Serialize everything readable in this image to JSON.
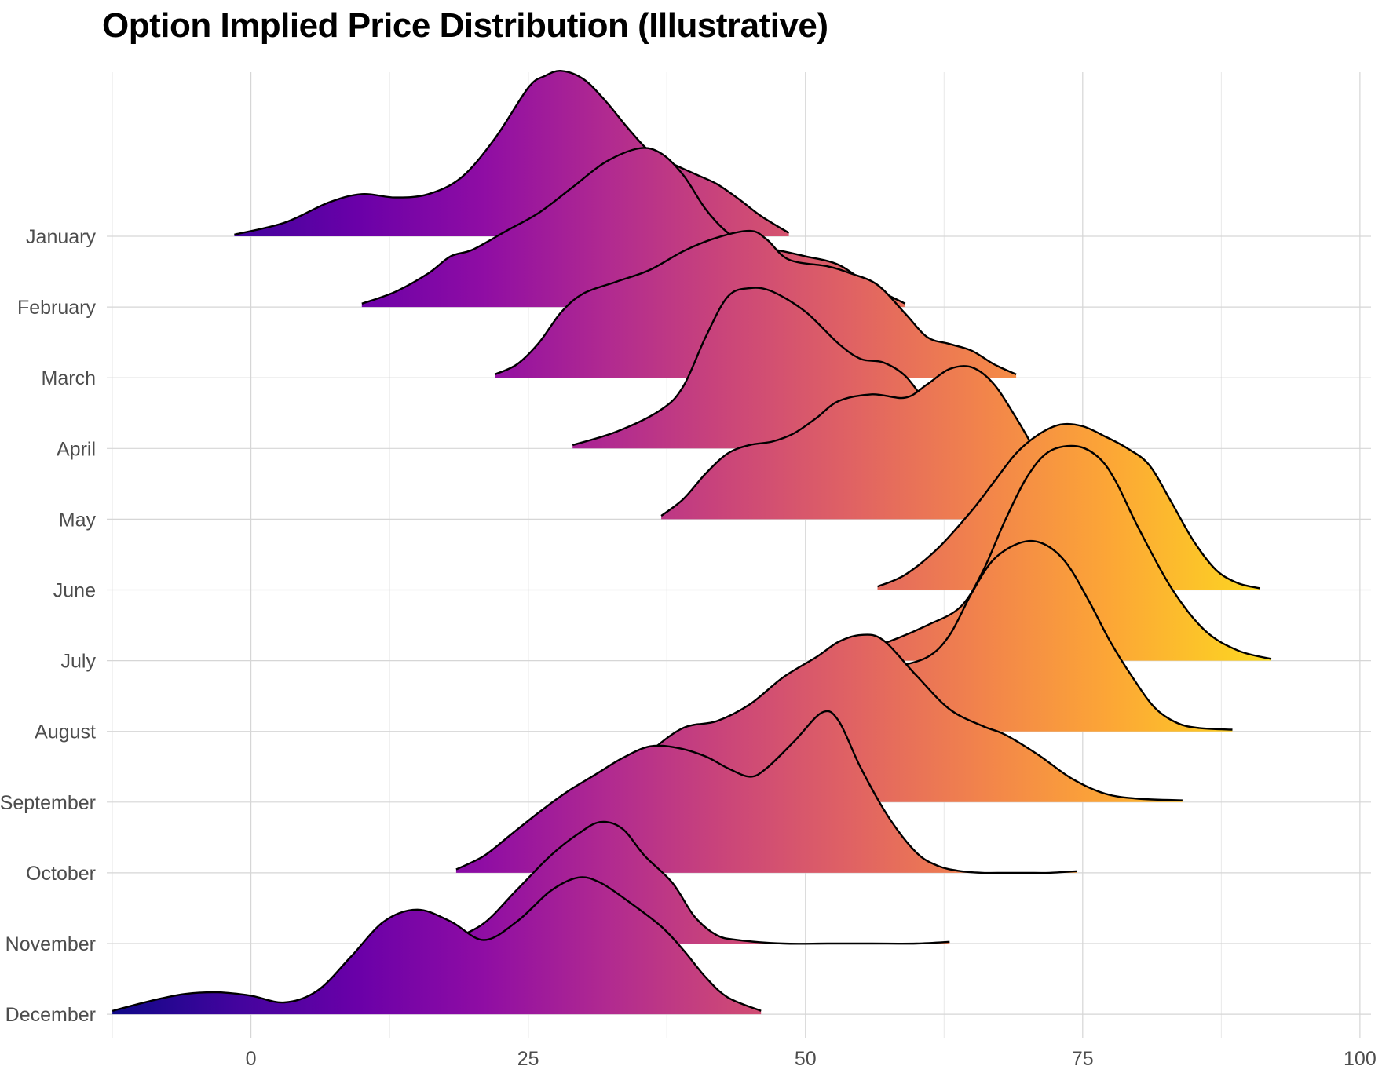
{
  "chart_data": {
    "type": "area",
    "subtype": "ridgeline",
    "title": "Option Implied Price Distribution (Illustrative)",
    "xlabel": "",
    "ylabel": "",
    "xlim": [
      -13,
      101
    ],
    "x_ticks": [
      0,
      25,
      50,
      75,
      100
    ],
    "x_tick_labels": [
      "0",
      "25",
      "50",
      "75",
      "100"
    ],
    "grid": true,
    "legend": "none",
    "color_map": "plasma",
    "color_domain": [
      -13,
      92
    ],
    "categories": [
      "January",
      "February",
      "March",
      "April",
      "May",
      "June",
      "July",
      "August",
      "September",
      "October",
      "November",
      "December"
    ],
    "series": [
      {
        "name": "January",
        "points": [
          [
            -1.5,
            0.01
          ],
          [
            3,
            0.08
          ],
          [
            7,
            0.2
          ],
          [
            10,
            0.25
          ],
          [
            13,
            0.23
          ],
          [
            16,
            0.25
          ],
          [
            19,
            0.35
          ],
          [
            22,
            0.58
          ],
          [
            25,
            0.88
          ],
          [
            26.5,
            0.95
          ],
          [
            28,
            0.98
          ],
          [
            30,
            0.93
          ],
          [
            32,
            0.8
          ],
          [
            34,
            0.64
          ],
          [
            36,
            0.5
          ],
          [
            38,
            0.43
          ],
          [
            40,
            0.37
          ],
          [
            42,
            0.31
          ],
          [
            44,
            0.22
          ],
          [
            46,
            0.12
          ],
          [
            48.5,
            0.02
          ]
        ]
      },
      {
        "name": "February",
        "points": [
          [
            10,
            0.02
          ],
          [
            13,
            0.09
          ],
          [
            16,
            0.2
          ],
          [
            18,
            0.3
          ],
          [
            20,
            0.34
          ],
          [
            23,
            0.45
          ],
          [
            26,
            0.56
          ],
          [
            29,
            0.71
          ],
          [
            32,
            0.86
          ],
          [
            35,
            0.94
          ],
          [
            37,
            0.91
          ],
          [
            39,
            0.78
          ],
          [
            41,
            0.58
          ],
          [
            43,
            0.44
          ],
          [
            45,
            0.37
          ],
          [
            48,
            0.33
          ],
          [
            50,
            0.3
          ],
          [
            53,
            0.25
          ],
          [
            56,
            0.12
          ],
          [
            59,
            0.02
          ]
        ]
      },
      {
        "name": "March",
        "points": [
          [
            22,
            0.02
          ],
          [
            24,
            0.08
          ],
          [
            26,
            0.21
          ],
          [
            28,
            0.39
          ],
          [
            30,
            0.5
          ],
          [
            33,
            0.57
          ],
          [
            36,
            0.64
          ],
          [
            39,
            0.75
          ],
          [
            42,
            0.83
          ],
          [
            45,
            0.87
          ],
          [
            46.5,
            0.82
          ],
          [
            48.5,
            0.7
          ],
          [
            52,
            0.66
          ],
          [
            54,
            0.62
          ],
          [
            56.5,
            0.55
          ],
          [
            59,
            0.38
          ],
          [
            61,
            0.24
          ],
          [
            63,
            0.2
          ],
          [
            65,
            0.16
          ],
          [
            67,
            0.08
          ],
          [
            69,
            0.02
          ]
        ]
      },
      {
        "name": "April",
        "points": [
          [
            29,
            0.02
          ],
          [
            33,
            0.1
          ],
          [
            37,
            0.23
          ],
          [
            39,
            0.37
          ],
          [
            41,
            0.66
          ],
          [
            43,
            0.9
          ],
          [
            45,
            0.95
          ],
          [
            47,
            0.93
          ],
          [
            50,
            0.81
          ],
          [
            53,
            0.62
          ],
          [
            55,
            0.53
          ],
          [
            57,
            0.51
          ],
          [
            59,
            0.43
          ],
          [
            61,
            0.26
          ],
          [
            63,
            0.1
          ],
          [
            65,
            0.05
          ],
          [
            67,
            0.02
          ]
        ]
      },
      {
        "name": "May",
        "points": [
          [
            37,
            0.02
          ],
          [
            39,
            0.12
          ],
          [
            41,
            0.27
          ],
          [
            43,
            0.39
          ],
          [
            45,
            0.44
          ],
          [
            47,
            0.46
          ],
          [
            49,
            0.51
          ],
          [
            51,
            0.6
          ],
          [
            53,
            0.7
          ],
          [
            56,
            0.74
          ],
          [
            59,
            0.72
          ],
          [
            61,
            0.8
          ],
          [
            63,
            0.89
          ],
          [
            65,
            0.9
          ],
          [
            67,
            0.8
          ],
          [
            69,
            0.6
          ],
          [
            71,
            0.38
          ],
          [
            73,
            0.2
          ],
          [
            75,
            0.08
          ],
          [
            77,
            0.02
          ]
        ]
      },
      {
        "name": "June",
        "points": [
          [
            56.5,
            0.02
          ],
          [
            59,
            0.09
          ],
          [
            62,
            0.25
          ],
          [
            65,
            0.47
          ],
          [
            67,
            0.64
          ],
          [
            69,
            0.81
          ],
          [
            71,
            0.92
          ],
          [
            73,
            0.98
          ],
          [
            75,
            0.97
          ],
          [
            77,
            0.91
          ],
          [
            79,
            0.84
          ],
          [
            81,
            0.74
          ],
          [
            83,
            0.52
          ],
          [
            85,
            0.29
          ],
          [
            87,
            0.12
          ],
          [
            89,
            0.04
          ],
          [
            91,
            0.01
          ]
        ]
      },
      {
        "name": "July",
        "points": [
          [
            53,
            0.02
          ],
          [
            57,
            0.1
          ],
          [
            61,
            0.21
          ],
          [
            64,
            0.32
          ],
          [
            66,
            0.53
          ],
          [
            68,
            0.83
          ],
          [
            70,
            1.09
          ],
          [
            72,
            1.24
          ],
          [
            74.5,
            1.27
          ],
          [
            76.5,
            1.2
          ],
          [
            78,
            1.06
          ],
          [
            80,
            0.79
          ],
          [
            83,
            0.43
          ],
          [
            86,
            0.18
          ],
          [
            89,
            0.06
          ],
          [
            92,
            0.01
          ]
        ]
      },
      {
        "name": "August",
        "points": [
          [
            51,
            0.02
          ],
          [
            54,
            0.2
          ],
          [
            56.5,
            0.35
          ],
          [
            58,
            0.38
          ],
          [
            61,
            0.44
          ],
          [
            63,
            0.57
          ],
          [
            65,
            0.82
          ],
          [
            67,
            1.02
          ],
          [
            69.5,
            1.12
          ],
          [
            71.5,
            1.11
          ],
          [
            73.5,
            1.0
          ],
          [
            75.5,
            0.78
          ],
          [
            77.5,
            0.53
          ],
          [
            79.5,
            0.32
          ],
          [
            81.5,
            0.14
          ],
          [
            83.5,
            0.05
          ],
          [
            85.5,
            0.02
          ],
          [
            88.5,
            0.01
          ]
        ]
      },
      {
        "name": "September",
        "points": [
          [
            31,
            0.02
          ],
          [
            33,
            0.12
          ],
          [
            36,
            0.3
          ],
          [
            39,
            0.44
          ],
          [
            42,
            0.48
          ],
          [
            45,
            0.58
          ],
          [
            48,
            0.74
          ],
          [
            51,
            0.86
          ],
          [
            53,
            0.95
          ],
          [
            55,
            0.99
          ],
          [
            57,
            0.96
          ],
          [
            60,
            0.75
          ],
          [
            63,
            0.55
          ],
          [
            66,
            0.45
          ],
          [
            68,
            0.4
          ],
          [
            71,
            0.28
          ],
          [
            74,
            0.14
          ],
          [
            77,
            0.05
          ],
          [
            80,
            0.02
          ],
          [
            84,
            0.01
          ]
        ]
      },
      {
        "name": "October",
        "points": [
          [
            18.5,
            0.02
          ],
          [
            21,
            0.1
          ],
          [
            23.5,
            0.23
          ],
          [
            26,
            0.36
          ],
          [
            28.5,
            0.48
          ],
          [
            31,
            0.58
          ],
          [
            33.5,
            0.68
          ],
          [
            36,
            0.75
          ],
          [
            38.5,
            0.74
          ],
          [
            41,
            0.69
          ],
          [
            43,
            0.62
          ],
          [
            45,
            0.57
          ],
          [
            46.5,
            0.62
          ],
          [
            49,
            0.78
          ],
          [
            51.5,
            0.95
          ],
          [
            53,
            0.9
          ],
          [
            55,
            0.62
          ],
          [
            57.5,
            0.33
          ],
          [
            60,
            0.12
          ],
          [
            62,
            0.04
          ],
          [
            64,
            0.01
          ],
          [
            66,
            0.0
          ],
          [
            68,
            0.0
          ],
          [
            70,
            0.0
          ],
          [
            72,
            0.0
          ],
          [
            74.5,
            0.01
          ]
        ]
      },
      {
        "name": "November",
        "points": [
          [
            18,
            0.02
          ],
          [
            21,
            0.12
          ],
          [
            24,
            0.32
          ],
          [
            27,
            0.52
          ],
          [
            29.5,
            0.65
          ],
          [
            31.5,
            0.72
          ],
          [
            33.5,
            0.68
          ],
          [
            35.5,
            0.52
          ],
          [
            38,
            0.36
          ],
          [
            40,
            0.16
          ],
          [
            42,
            0.05
          ],
          [
            44,
            0.02
          ],
          [
            48,
            0.0
          ],
          [
            52,
            0.0
          ],
          [
            56,
            0.0
          ],
          [
            60,
            0.0
          ],
          [
            63,
            0.01
          ]
        ]
      },
      {
        "name": "December",
        "points": [
          [
            -12.5,
            0.02
          ],
          [
            -9,
            0.08
          ],
          [
            -6,
            0.12
          ],
          [
            -3,
            0.13
          ],
          [
            0,
            0.11
          ],
          [
            3,
            0.07
          ],
          [
            6,
            0.14
          ],
          [
            9,
            0.34
          ],
          [
            12,
            0.55
          ],
          [
            15,
            0.62
          ],
          [
            18,
            0.55
          ],
          [
            21,
            0.44
          ],
          [
            24,
            0.55
          ],
          [
            27,
            0.73
          ],
          [
            29.5,
            0.81
          ],
          [
            31.5,
            0.78
          ],
          [
            34,
            0.67
          ],
          [
            37,
            0.52
          ],
          [
            39,
            0.38
          ],
          [
            41,
            0.22
          ],
          [
            43,
            0.1
          ],
          [
            46,
            0.02
          ]
        ]
      }
    ]
  }
}
